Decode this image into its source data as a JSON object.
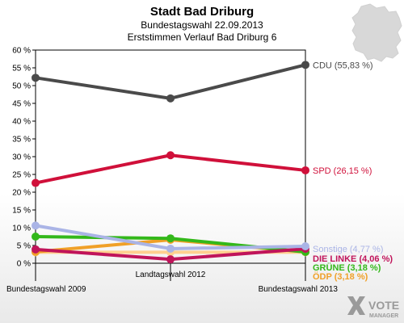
{
  "chart_data": {
    "type": "line",
    "title": "Stadt Bad Driburg",
    "subtitle_1": "Bundestagswahl 22.09.2013",
    "subtitle_2": "Erststimmen Verlauf Bad Driburg 6",
    "categories": [
      "Bundestagswahl 2009",
      "Landtagswahl 2012",
      "Bundestagswahl 2013"
    ],
    "ylim": [
      0,
      60
    ],
    "yticks": [
      "0 %",
      "5 %",
      "10 %",
      "15 %",
      "20 %",
      "25 %",
      "30 %",
      "35 %",
      "40 %",
      "45 %",
      "50 %",
      "55 %",
      "60 %"
    ],
    "grid": false,
    "series": [
      {
        "name": "CDU",
        "label": "CDU (55,83 %)",
        "color": "#4a4a4a",
        "values": [
          52.2,
          46.4,
          55.83
        ]
      },
      {
        "name": "SPD",
        "label": "SPD (26,15 %)",
        "color": "#d0103a",
        "values": [
          22.6,
          30.4,
          26.15
        ]
      },
      {
        "name": "Sonstige",
        "label": "Sonstige (4,77 %)",
        "color": "#aab4e6",
        "values": [
          10.6,
          4.1,
          4.77
        ]
      },
      {
        "name": "DIE LINKE",
        "label": "DIE LINKE (4,06 %)",
        "color": "#c0145a",
        "values": [
          3.9,
          1.1,
          4.06
        ]
      },
      {
        "name": "GRÜNE",
        "label": "GRÜNE (3,18 %)",
        "color": "#33b81a",
        "values": [
          7.5,
          7.0,
          3.18
        ]
      },
      {
        "name": "ÖDP",
        "label": "ÖDP (3,18 %)",
        "color": "#f0a028",
        "values": [
          3.2,
          6.6,
          3.18
        ]
      },
      {
        "name": "",
        "label": "",
        "color": "#ffd090",
        "values": [
          3.1,
          3.1,
          3.1
        ]
      }
    ]
  },
  "logo": {
    "line1": "VOTE",
    "line2": "MANAGER"
  },
  "colors": {
    "frame": "#000000",
    "map": "#d8d8d8",
    "logo": "#9a9a9a"
  }
}
